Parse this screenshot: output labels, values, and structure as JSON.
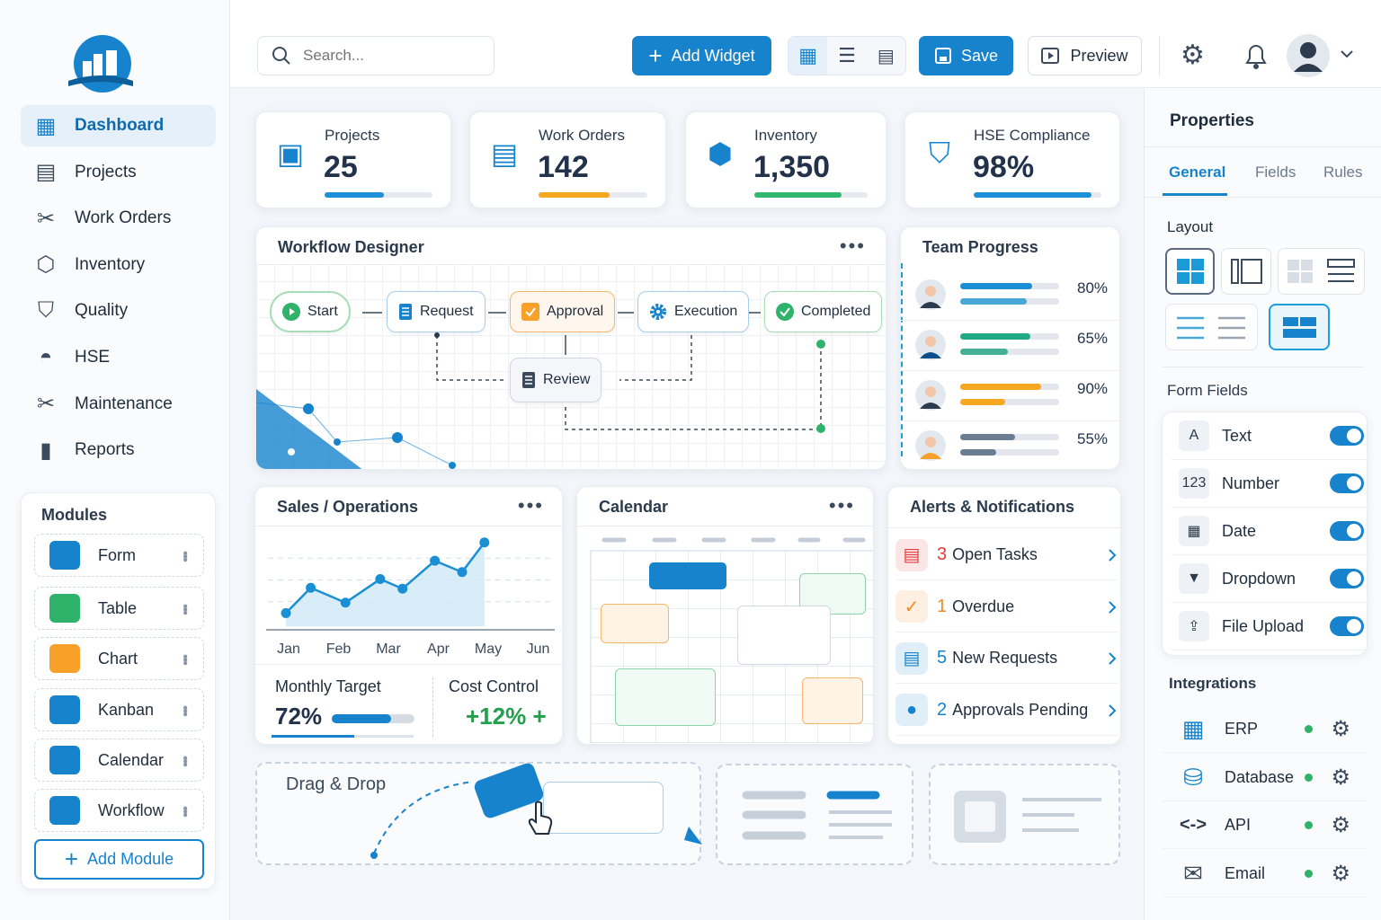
{
  "brand": {
    "logo": "factory-globe-logo"
  },
  "sidebar": {
    "items": [
      {
        "label": "Dashboard",
        "icon": "dashboard-icon",
        "active": true
      },
      {
        "label": "Projects",
        "icon": "clipboard-icon"
      },
      {
        "label": "Work Orders",
        "icon": "wrench-icon"
      },
      {
        "label": "Inventory",
        "icon": "box-icon"
      },
      {
        "label": "Quality",
        "icon": "shield-check-icon"
      },
      {
        "label": "HSE",
        "icon": "hard-hat-icon"
      },
      {
        "label": "Maintenance",
        "icon": "tools-icon"
      },
      {
        "label": "Reports",
        "icon": "bar-chart-icon"
      }
    ],
    "modules_title": "Modules",
    "modules": [
      {
        "label": "Form",
        "color": "#1683cc"
      },
      {
        "label": "Table",
        "color": "#2fb36a"
      },
      {
        "label": "Chart",
        "color": "#f7a02a"
      },
      {
        "label": "Kanban",
        "color": "#1683cc"
      },
      {
        "label": "Calendar",
        "color": "#1683cc"
      },
      {
        "label": "Workflow",
        "color": "#1683cc"
      }
    ],
    "add_module": "Add Module"
  },
  "topbar": {
    "search_placeholder": "Search...",
    "add_widget": "Add Widget",
    "save": "Save",
    "preview": "Preview"
  },
  "stats": [
    {
      "label": "Projects",
      "value": "25",
      "progress": 0.55,
      "color": "#1e8fd9"
    },
    {
      "label": "Work Orders",
      "value": "142",
      "progress": 0.65,
      "color": "#f7a823"
    },
    {
      "label": "Inventory",
      "value": "1,350",
      "progress": 0.77,
      "color": "#2fb86e"
    },
    {
      "label": "HSE Compliance",
      "value": "98%",
      "progress": 0.92,
      "color": "#1e8fd9"
    }
  ],
  "workflow": {
    "title": "Workflow Designer",
    "nodes": {
      "start": "Start",
      "request": "Request",
      "approval": "Approval",
      "execution": "Execution",
      "completed": "Completed",
      "review": "Review"
    }
  },
  "team": {
    "title": "Team Progress",
    "members": [
      {
        "pct": "80%",
        "a": 0.73,
        "b": 0.67,
        "color": "#1a8fd6",
        "color2": "#4aa8d8"
      },
      {
        "pct": "65%",
        "a": 0.71,
        "b": 0.48,
        "color": "#1faa85",
        "color2": "#45b095"
      },
      {
        "pct": "90%",
        "a": 0.82,
        "b": 0.45,
        "color": "#f7a823",
        "color2": "#f7a823"
      },
      {
        "pct": "55%",
        "a": 0.55,
        "b": 0.36,
        "color": "#6b7d93",
        "color2": "#6b7d93"
      }
    ]
  },
  "sales": {
    "title": "Sales / Operations",
    "monthly_target_label": "Monthly Target",
    "monthly_target": "72%",
    "monthly_target_value": 0.72,
    "cost_control_label": "Cost Control",
    "cost_control": "+12% +"
  },
  "chart_data": {
    "type": "area",
    "categories": [
      "Jan",
      "Feb",
      "Mar",
      "Apr",
      "May",
      "Jun"
    ],
    "x": [
      0,
      0.5,
      1.2,
      1.9,
      2.35,
      3.0,
      3.55,
      4.0
    ],
    "values": [
      15,
      44,
      27,
      54,
      43,
      75,
      62,
      96
    ],
    "ylim": [
      0,
      105
    ],
    "grid": true,
    "color": "#1a8fd6"
  },
  "calendar": {
    "title": "Calendar"
  },
  "alerts": {
    "title": "Alerts & Notifications",
    "items": [
      {
        "count": "3",
        "label": "Open Tasks",
        "color": "#e23b3b",
        "icon": "task-icon"
      },
      {
        "count": "1",
        "label": "Overdue",
        "color": "#f08a24",
        "icon": "check-circle-icon"
      },
      {
        "count": "5",
        "label": "New Requests",
        "color": "#1683cc",
        "icon": "document-icon"
      },
      {
        "count": "2",
        "label": "Approvals Pending",
        "color": "#1683cc",
        "icon": "user-icon"
      }
    ]
  },
  "dragdrop": {
    "title": "Drag & Drop"
  },
  "properties": {
    "title": "Properties",
    "tabs": [
      "General",
      "Fields",
      "Rules"
    ],
    "layout_label": "Layout",
    "form_fields_label": "Form Fields",
    "fields": [
      {
        "icon": "A",
        "label": "Text",
        "on": true
      },
      {
        "icon": "123",
        "label": "Number",
        "on": true
      },
      {
        "icon": "▦",
        "label": "Date",
        "on": true
      },
      {
        "icon": "▼",
        "label": "Dropdown",
        "on": true
      },
      {
        "icon": "⇪",
        "label": "File Upload",
        "on": true
      }
    ],
    "integrations_label": "Integrations",
    "integrations": [
      {
        "label": "ERP",
        "icon": "grid-icon"
      },
      {
        "label": "Database",
        "icon": "database-icon"
      },
      {
        "label": "API",
        "icon": "code-icon"
      },
      {
        "label": "Email",
        "icon": "mail-icon"
      }
    ]
  }
}
